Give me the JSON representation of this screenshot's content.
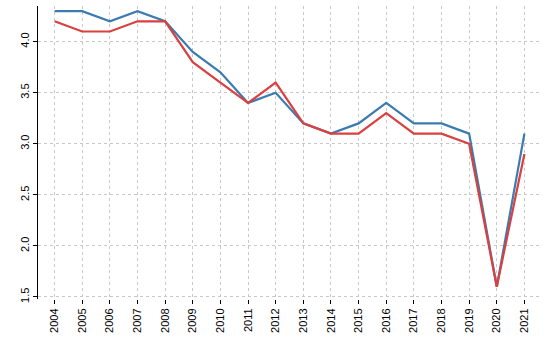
{
  "chart_data": {
    "type": "line",
    "categories": [
      "2004",
      "2005",
      "2006",
      "2007",
      "2008",
      "2009",
      "2010",
      "2011",
      "2012",
      "2013",
      "2014",
      "2015",
      "2016",
      "2017",
      "2018",
      "2019",
      "2020",
      "2021"
    ],
    "series": [
      {
        "color": "#3b7bb0",
        "values": [
          4.3,
          4.3,
          4.2,
          4.3,
          4.2,
          3.9,
          3.7,
          3.4,
          3.5,
          3.2,
          3.1,
          3.2,
          3.4,
          3.2,
          3.2,
          3.1,
          1.6,
          3.1
        ]
      },
      {
        "color": "#d9403f",
        "values": [
          4.2,
          4.1,
          4.1,
          4.2,
          4.2,
          3.8,
          3.6,
          3.4,
          3.6,
          3.2,
          3.1,
          3.1,
          3.3,
          3.1,
          3.1,
          3.0,
          1.6,
          2.9
        ]
      }
    ],
    "ylim": [
      1.48,
      4.35
    ],
    "yticks": [
      1.5,
      {
        "value": 2,
        "label": "2.0"
      },
      2.5,
      {
        "value": 3,
        "label": "3.0"
      },
      3.5,
      {
        "value": 4,
        "label": "4.0"
      }
    ],
    "grid": true
  }
}
